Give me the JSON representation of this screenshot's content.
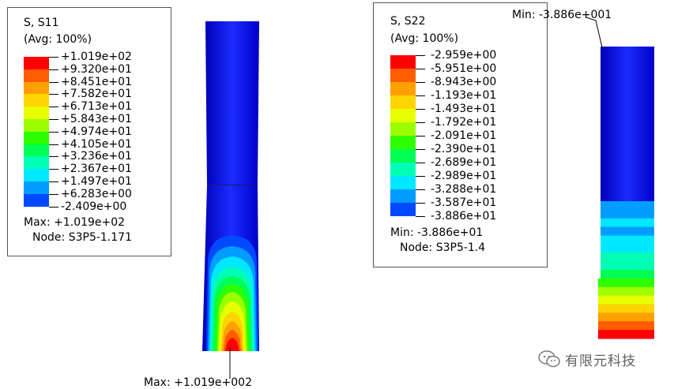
{
  "left_legend": {
    "title": "S, S11",
    "averaging": "(Avg: 100%)",
    "values": [
      "+1.019e+02",
      "+9.320e+01",
      "+8.451e+01",
      "+7.582e+01",
      "+6.713e+01",
      "+5.843e+01",
      "+4.974e+01",
      "+4.105e+01",
      "+3.236e+01",
      "+2.367e+01",
      "+1.497e+01",
      "+6.283e+00",
      "-2.409e+00"
    ],
    "extreme_line": "Max: +1.019e+02",
    "node_line": "Node: S3P5-1.171"
  },
  "right_legend": {
    "title": "S, S22",
    "averaging": "(Avg: 100%)",
    "values": [
      "-2.959e+00",
      "-5.951e+00",
      "-8.943e+00",
      "-1.193e+01",
      "-1.493e+01",
      "-1.792e+01",
      "-2.091e+01",
      "-2.390e+01",
      "-2.689e+01",
      "-2.989e+01",
      "-3.288e+01",
      "-3.587e+01",
      "-3.886e+01"
    ],
    "extreme_line": "Min: -3.886e+01",
    "node_line": "Node: S3P5-1.4"
  },
  "contour_colors": [
    "#ff0000",
    "#ff5d00",
    "#ff9f00",
    "#ffd400",
    "#e8ff00",
    "#9cff00",
    "#2eff00",
    "#00ff52",
    "#00ffb4",
    "#00e8ff",
    "#009cff",
    "#0049ff",
    "#0000ff"
  ],
  "left_callout": "Max: +1.019e+002",
  "right_callout": "Min: -3.886e+001",
  "watermark": {
    "icon": "wechat-icon",
    "text": "有限元科技"
  }
}
